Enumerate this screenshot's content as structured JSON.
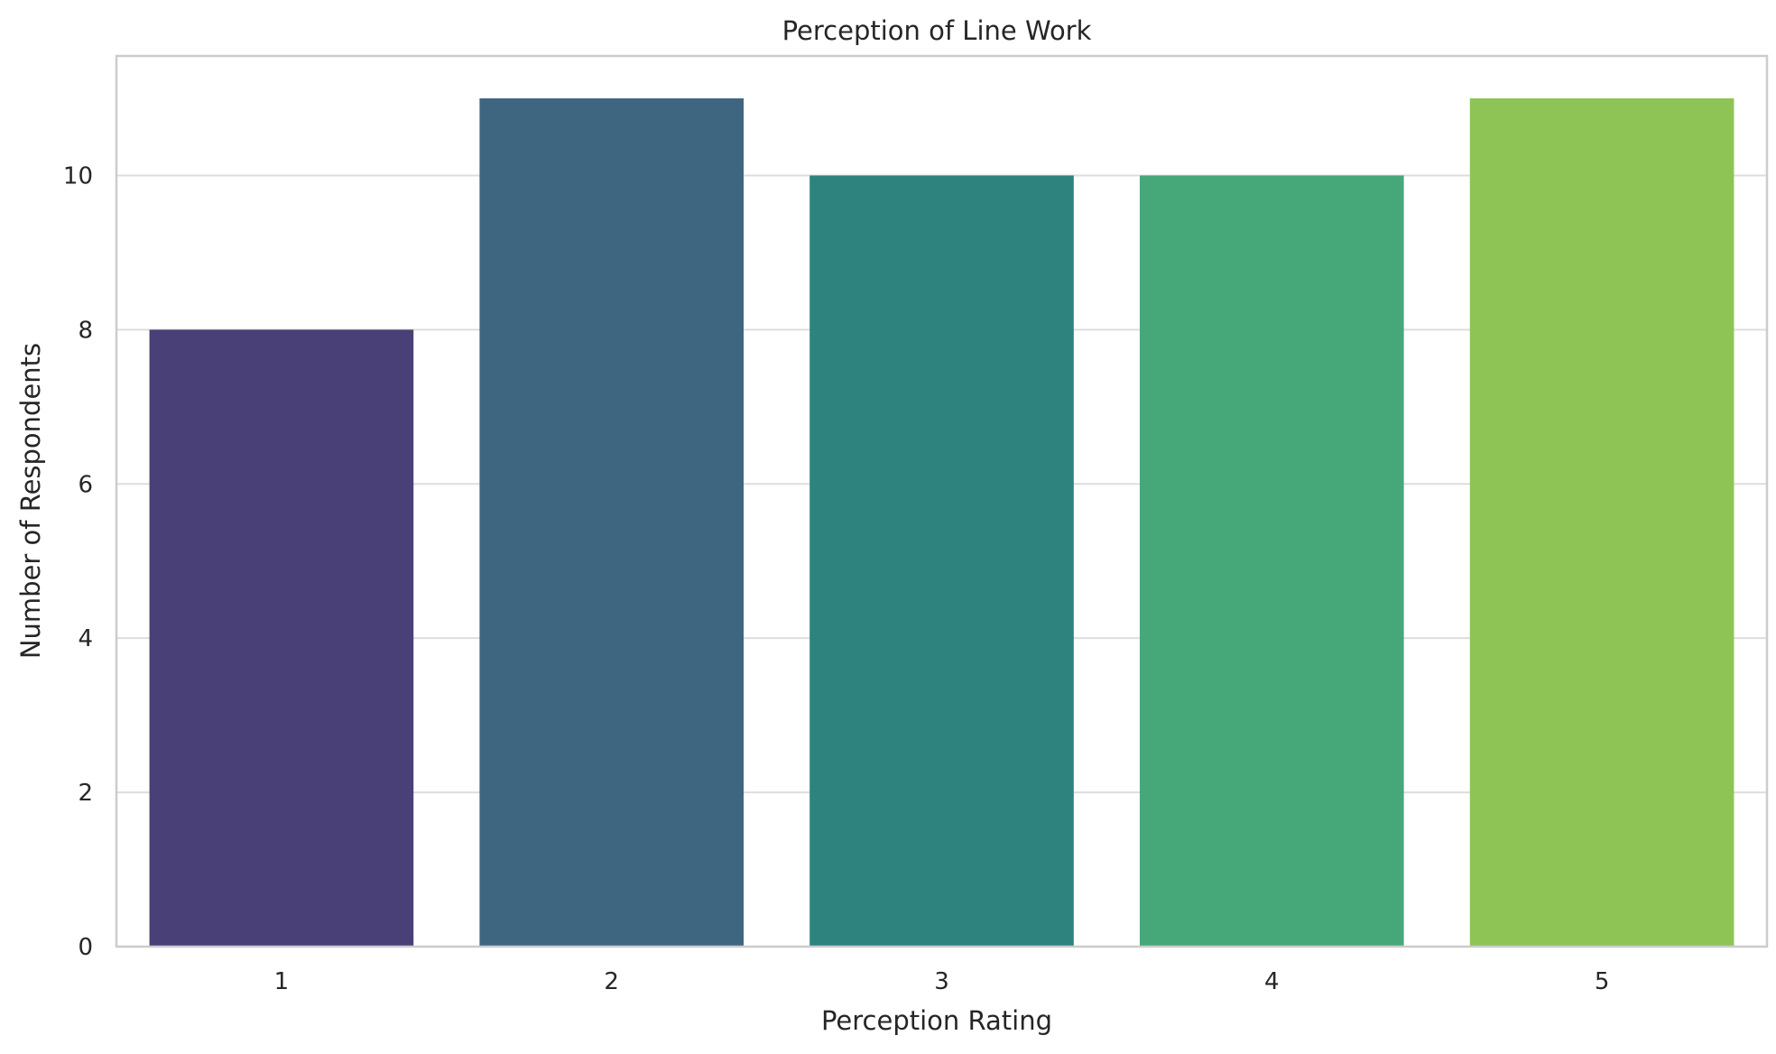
{
  "chart_data": {
    "type": "bar",
    "title": "Perception of Line Work",
    "xlabel": "Perception Rating",
    "ylabel": "Number of Respondents",
    "categories": [
      "1",
      "2",
      "3",
      "4",
      "5"
    ],
    "values": [
      8,
      11,
      10,
      10,
      11
    ],
    "colors": [
      "#4a4078",
      "#3e6681",
      "#2e837f",
      "#46a878",
      "#8ec456"
    ],
    "ylim": [
      0,
      11.55
    ],
    "yticks": [
      0,
      2,
      4,
      6,
      8,
      10
    ],
    "grid": true,
    "legend": "none"
  }
}
